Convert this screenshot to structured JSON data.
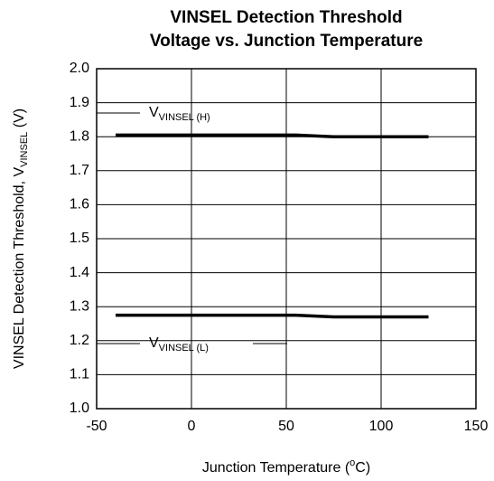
{
  "chart_data": {
    "type": "line",
    "title": [
      "VINSEL Detection Threshold",
      "Voltage vs. Junction Temperature"
    ],
    "y_label": {
      "text": "VINSEL Detection Threshold, V",
      "subscript": "VINSEL",
      "suffix": " (V)"
    },
    "x_label": {
      "text": "Junction Temperature (",
      "superscript": "o",
      "suffix": "C)"
    },
    "series": [
      {
        "name": {
          "text": "V",
          "subscript": "VINSEL (H)"
        },
        "color": "#000000",
        "x": [
          -40,
          55,
          75,
          125
        ],
        "values": [
          1.805,
          1.805,
          1.8,
          1.8
        ]
      },
      {
        "name": {
          "text": "V",
          "subscript": "VINSEL (L)"
        },
        "color": "#000000",
        "x": [
          -40,
          55,
          75,
          125
        ],
        "values": [
          1.275,
          1.275,
          1.27,
          1.27
        ]
      }
    ],
    "xlim": [
      -50,
      150
    ],
    "xticks": [
      -50,
      0,
      50,
      100,
      150
    ],
    "ylim": [
      1.0,
      2.0
    ],
    "yticks": [
      {
        "value": 1.0,
        "label": "1.0"
      },
      1.1,
      1.2,
      1.3,
      1.4,
      1.5,
      1.6,
      1.7,
      1.8,
      1.9,
      {
        "value": 2.0,
        "label": "2.0"
      }
    ],
    "grid": true
  }
}
